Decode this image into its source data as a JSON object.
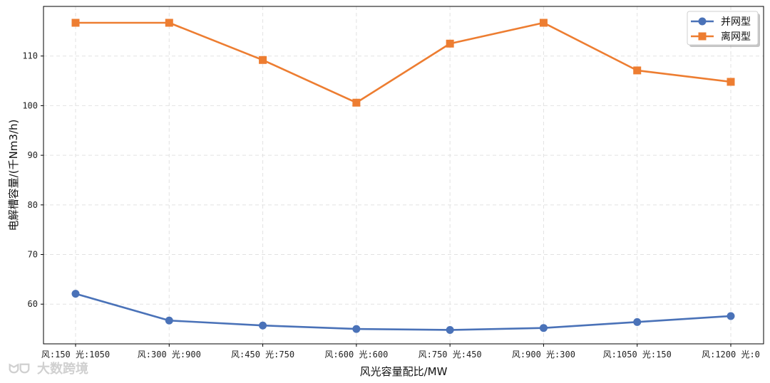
{
  "chart_data": {
    "type": "line",
    "categories": [
      "风:150 光:1050",
      "风:300 光:900",
      "风:450 光:750",
      "风:600 光:600",
      "风:750 光:450",
      "风:900 光:300",
      "风:1050 光:150",
      "风:1200 光:0"
    ],
    "series": [
      {
        "name": "并网型",
        "color": "#4a72b8",
        "marker": "circle",
        "values": [
          62.1,
          56.7,
          55.7,
          55.0,
          54.8,
          55.2,
          56.4,
          57.6
        ]
      },
      {
        "name": "离网型",
        "color": "#ed7d31",
        "marker": "square",
        "values": [
          116.7,
          116.7,
          109.2,
          100.6,
          112.5,
          116.7,
          107.1,
          104.8
        ]
      }
    ],
    "xlabel": "风光容量配比/MW",
    "ylabel": "电解槽容量/(千Nm3/h)",
    "ylim": [
      52,
      120
    ],
    "yticks": [
      60,
      70,
      80,
      90,
      100,
      110
    ],
    "grid": true,
    "legend_position": "top-right"
  },
  "watermark": "大数跨境"
}
